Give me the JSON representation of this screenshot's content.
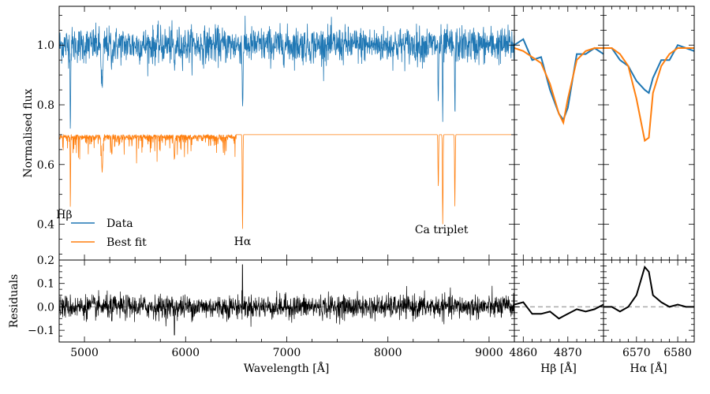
{
  "chart_data": [
    {
      "name": "spectrum",
      "type": "line",
      "xlim": [
        4750,
        9250
      ],
      "ylim": [
        0.28,
        1.13
      ],
      "ylabel": "Normalised flux",
      "y_ticks": [
        0.4,
        0.6,
        0.8,
        1.0
      ],
      "y_tick_labels": [
        "0.4",
        "0.6",
        "0.8",
        "1.0"
      ],
      "series": [
        {
          "name": "Data",
          "color": "#1f77b4",
          "baseline": 1.0,
          "noise": 0.03,
          "absorption_lines": [
            {
              "center": 4861,
              "depth": 0.27,
              "width": 3
            },
            {
              "center": 5175,
              "depth": 0.14,
              "width": 8
            },
            {
              "center": 5270,
              "depth": 0.07,
              "width": 4
            },
            {
              "center": 5890,
              "depth": 0.08,
              "width": 5
            },
            {
              "center": 6563,
              "depth": 0.2,
              "width": 4
            },
            {
              "center": 8498,
              "depth": 0.21,
              "width": 3
            },
            {
              "center": 8542,
              "depth": 0.26,
              "width": 3
            },
            {
              "center": 8662,
              "depth": 0.25,
              "width": 3
            }
          ]
        },
        {
          "name": "Best fit",
          "color": "#ff7f0e",
          "baseline": 0.7,
          "noise": 0.0,
          "absorption_lines": [
            {
              "center": 4861,
              "depth": 0.25,
              "width": 2
            },
            {
              "center": 5175,
              "depth": 0.12,
              "width": 6
            },
            {
              "center": 5270,
              "depth": 0.06,
              "width": 3
            },
            {
              "center": 5890,
              "depth": 0.08,
              "width": 4
            },
            {
              "center": 6563,
              "depth": 0.32,
              "width": 3
            },
            {
              "center": 8498,
              "depth": 0.18,
              "width": 3
            },
            {
              "center": 8542,
              "depth": 0.3,
              "width": 3
            },
            {
              "center": 8662,
              "depth": 0.24,
              "width": 3
            }
          ]
        }
      ],
      "annotations": [
        {
          "text": "Hβ",
          "x": 4800,
          "y": 0.42
        },
        {
          "text": "Hα",
          "x": 6563,
          "y": 0.33
        },
        {
          "text": "Ca triplet",
          "x": 8530,
          "y": 0.37
        }
      ],
      "legend": {
        "entries": [
          "Data",
          "Best fit"
        ],
        "location": "lower-left"
      }
    },
    {
      "name": "residuals",
      "type": "line",
      "xlim": [
        4750,
        9250
      ],
      "ylim": [
        -0.15,
        0.2
      ],
      "xlabel": "Wavelength [Å]",
      "ylabel": "Residuals",
      "color": "#000000",
      "noise": 0.025,
      "spikes": [
        {
          "x": 6563,
          "value": 0.18
        },
        {
          "x": 5890,
          "value": -0.12
        },
        {
          "x": 5270,
          "value": -0.06
        }
      ],
      "x_ticks": [
        5000,
        6000,
        7000,
        8000,
        9000
      ],
      "x_tick_labels": [
        "5000",
        "6000",
        "7000",
        "8000",
        "9000"
      ],
      "y_ticks": [
        -0.1,
        0.0,
        0.1,
        0.2
      ],
      "y_tick_labels": [
        "−0.1",
        "0.0",
        "0.1",
        "0.2"
      ]
    },
    {
      "name": "hbeta_zoom",
      "type": "line",
      "xlim": [
        4858,
        4878
      ],
      "xlabel": "Hβ [Å]",
      "x_ticks": [
        4860,
        4870
      ],
      "x_tick_labels": [
        "4860",
        "4870"
      ],
      "flux": {
        "x": [
          4858,
          4860,
          4862,
          4864,
          4866,
          4868,
          4869,
          4870,
          4872,
          4874,
          4876,
          4878
        ],
        "data": [
          1.0,
          1.02,
          0.95,
          0.96,
          0.85,
          0.77,
          0.75,
          0.79,
          0.97,
          0.97,
          0.99,
          0.97
        ],
        "fit": [
          0.99,
          0.98,
          0.96,
          0.94,
          0.87,
          0.77,
          0.74,
          0.82,
          0.95,
          0.98,
          0.99,
          0.99
        ]
      },
      "residuals": {
        "x": [
          4858,
          4860,
          4862,
          4864,
          4866,
          4868,
          4869,
          4870,
          4872,
          4874,
          4876,
          4878
        ],
        "values": [
          0.01,
          0.02,
          -0.03,
          -0.03,
          -0.02,
          -0.05,
          -0.04,
          -0.03,
          -0.01,
          -0.02,
          -0.01,
          0.01
        ]
      }
    },
    {
      "name": "halpha_zoom",
      "type": "line",
      "xlim": [
        6562,
        6584
      ],
      "xlabel": "Hα [Å]",
      "x_ticks": [
        6570,
        6580
      ],
      "x_tick_labels": [
        "6570",
        "6580"
      ],
      "flux": {
        "x": [
          6562,
          6564,
          6566,
          6568,
          6570,
          6572,
          6573,
          6574,
          6576,
          6578,
          6580,
          6582,
          6584
        ],
        "data": [
          0.99,
          0.99,
          0.95,
          0.93,
          0.88,
          0.85,
          0.84,
          0.89,
          0.95,
          0.95,
          1.0,
          0.99,
          0.98
        ],
        "fit": [
          0.99,
          0.99,
          0.97,
          0.93,
          0.82,
          0.68,
          0.69,
          0.84,
          0.93,
          0.97,
          0.99,
          0.99,
          0.99
        ]
      },
      "residuals": {
        "x": [
          6562,
          6564,
          6566,
          6568,
          6570,
          6572,
          6573,
          6574,
          6576,
          6578,
          6580,
          6582,
          6584
        ],
        "values": [
          0.0,
          0.0,
          -0.02,
          0.0,
          0.05,
          0.17,
          0.15,
          0.05,
          0.02,
          0.0,
          0.01,
          0.0,
          0.0
        ]
      }
    }
  ]
}
